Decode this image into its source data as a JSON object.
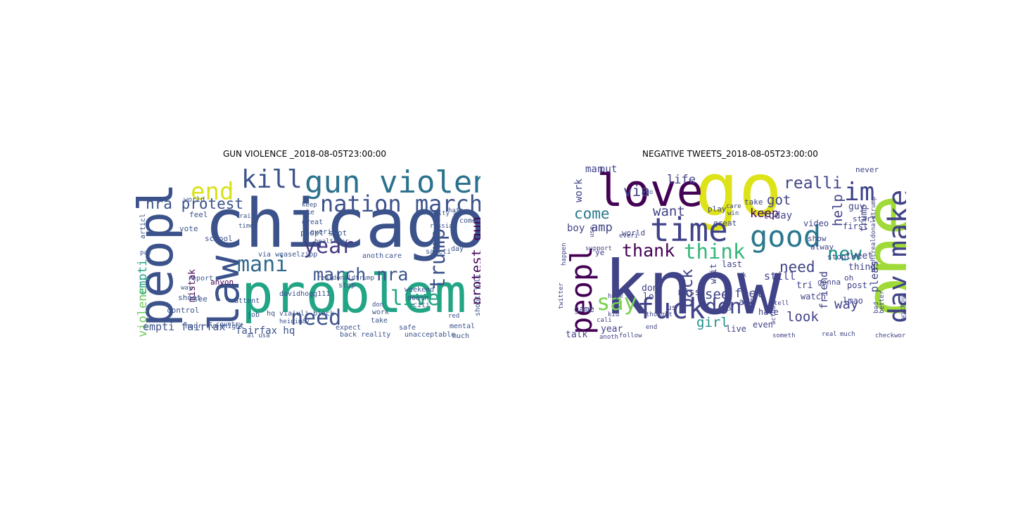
{
  "chart_data": [
    {
      "type": "wordcloud",
      "title": "GUN VIOLENCE _2018-08-05T23:00:00",
      "words": [
        {
          "text": "chicago",
          "weight": 100,
          "color": "#3b528b"
        },
        {
          "text": "problem",
          "weight": 80,
          "color": "#21a585"
        },
        {
          "text": "peopl",
          "weight": 72,
          "color": "#3b528b"
        },
        {
          "text": "law",
          "weight": 62,
          "color": "#3b528b"
        },
        {
          "text": "gun violenc",
          "weight": 46,
          "color": "#2c728e"
        },
        {
          "text": "kill",
          "weight": 38,
          "color": "#3b528b"
        },
        {
          "text": "end",
          "weight": 36,
          "color": "#d8e219"
        },
        {
          "text": "nation march",
          "weight": 34,
          "color": "#3b528b"
        },
        {
          "text": "year",
          "weight": 32,
          "color": "#443983"
        },
        {
          "text": "mani",
          "weight": 32,
          "color": "#31688e"
        },
        {
          "text": "need",
          "weight": 32,
          "color": "#3b528b"
        },
        {
          "text": "trump",
          "weight": 30,
          "color": "#3b528b"
        },
        {
          "text": "live",
          "weight": 30,
          "color": "#21a585"
        },
        {
          "text": "march nra",
          "weight": 26,
          "color": "#3b528b"
        },
        {
          "text": "nra protest",
          "weight": 22,
          "color": "#3b528b"
        },
        {
          "text": "protest gun",
          "weight": 20,
          "color": "#440154"
        },
        {
          "text": "empti",
          "weight": 18,
          "color": "#21a585"
        },
        {
          "text": "violenc",
          "weight": 18,
          "color": "#6ccd5a"
        },
        {
          "text": "empti fairfax",
          "weight": 16,
          "color": "#3b528b"
        },
        {
          "text": "fairfax hq",
          "weight": 15,
          "color": "#3b528b"
        },
        {
          "text": "mistak",
          "weight": 14,
          "color": "#440154"
        },
        {
          "text": "anyon",
          "weight": 12,
          "color": "#440154"
        },
        {
          "text": "vote",
          "weight": 12,
          "color": "#3b528b"
        },
        {
          "text": "feel",
          "weight": 12,
          "color": "#3b528b"
        },
        {
          "text": "shoot",
          "weight": 12,
          "color": "#3b528b"
        },
        {
          "text": "control",
          "weight": 12,
          "color": "#3b528b"
        },
        {
          "text": "see",
          "weight": 12,
          "color": "#3b528b"
        },
        {
          "text": "school",
          "weight": 12,
          "color": "#3b528b"
        },
        {
          "text": "peopl shot",
          "weight": 12,
          "color": "#3b528b"
        },
        {
          "text": "via weaselzipp",
          "weight": 11,
          "color": "#3b528b"
        },
        {
          "text": "davidhogg111",
          "weight": 11,
          "color": "#3b528b"
        },
        {
          "text": "hq via",
          "weight": 11,
          "color": "#3b528b"
        },
        {
          "text": "juli black",
          "weight": 11,
          "color": "#3b528b"
        },
        {
          "text": "anoth",
          "weight": 11,
          "color": "#3b528b"
        },
        {
          "text": "care",
          "weight": 11,
          "color": "#3b528b"
        },
        {
          "text": "weekend",
          "weight": 11,
          "color": "#3b528b"
        },
        {
          "text": "doesn",
          "weight": 11,
          "color": "#3b528b"
        },
        {
          "text": "citi",
          "weight": 11,
          "color": "#3b528b"
        },
        {
          "text": "work",
          "weight": 11,
          "color": "#3b528b"
        },
        {
          "text": "take",
          "weight": 11,
          "color": "#3b528b"
        },
        {
          "text": "expect",
          "weight": 11,
          "color": "#3b528b"
        },
        {
          "text": "safeti",
          "weight": 11,
          "color": "#3b528b"
        },
        {
          "text": "stop",
          "weight": 11,
          "color": "#3b528b"
        },
        {
          "text": "mental",
          "weight": 11,
          "color": "#3b528b"
        },
        {
          "text": "much",
          "weight": 10,
          "color": "#3b528b"
        },
        {
          "text": "articl",
          "weight": 10,
          "color": "#3b528b"
        },
        {
          "text": "world",
          "weight": 10,
          "color": "#3b528b"
        },
        {
          "text": "everi",
          "weight": 10,
          "color": "#3b528b"
        },
        {
          "text": "make",
          "weight": 10,
          "color": "#3b528b"
        },
        {
          "text": "great",
          "weight": 10,
          "color": "#3b528b"
        },
        {
          "text": "day",
          "weight": 10,
          "color": "#3b528b"
        },
        {
          "text": "come",
          "weight": 10,
          "color": "#3b528b"
        },
        {
          "text": "shoot juli",
          "weight": 10,
          "color": "#3b528b"
        },
        {
          "text": "attent",
          "weight": 10,
          "color": "#3b528b"
        },
        {
          "text": "report",
          "weight": 10,
          "color": "#3b528b"
        },
        {
          "text": "hour overnight",
          "weight": 10,
          "color": "#3b528b"
        },
        {
          "text": "back reality",
          "weight": 10,
          "color": "#3b528b"
        },
        {
          "text": "unacceptable",
          "weight": 10,
          "color": "#3b528b"
        },
        {
          "text": "safe",
          "weight": 10,
          "color": "#3b528b"
        },
        {
          "text": "job",
          "weight": 10,
          "color": "#3b528b"
        },
        {
          "text": "train",
          "weight": 9,
          "color": "#3b528b"
        },
        {
          "text": "keep",
          "weight": 9,
          "color": "#3b528b"
        },
        {
          "text": "realdonaldtrump",
          "weight": 9,
          "color": "#3b528b"
        },
        {
          "text": "heidim87",
          "weight": 9,
          "color": "#3b528b"
        },
        {
          "text": "country",
          "weight": 9,
          "color": "#3b528b"
        },
        {
          "text": "reality al",
          "weight": 9,
          "color": "#3b528b"
        },
        {
          "text": "don",
          "weight": 9,
          "color": "#3b528b"
        },
        {
          "text": "way",
          "weight": 9,
          "color": "#3b528b"
        },
        {
          "text": "red",
          "weight": 9,
          "color": "#3b528b"
        },
        {
          "text": "russian",
          "weight": 9,
          "color": "#3b528b"
        },
        {
          "text": "al usa",
          "weight": 9,
          "color": "#3b528b"
        },
        {
          "text": "healthcar",
          "weight": 9,
          "color": "#3b528b"
        },
        {
          "text": "pay",
          "weight": 9,
          "color": "#3b528b"
        },
        {
          "text": "time",
          "weight": 9,
          "color": "#3b528b"
        },
        {
          "text": "hate",
          "weight": 9,
          "color": "#3b528b"
        }
      ]
    },
    {
      "type": "wordcloud",
      "title": "NEGATIVE TWEETS_2018-08-05T23:00:00",
      "words": [
        {
          "text": "know",
          "weight": 100,
          "color": "#404387"
        },
        {
          "text": "go",
          "weight": 98,
          "color": "#dde318"
        },
        {
          "text": "one",
          "weight": 92,
          "color": "#a0da39"
        },
        {
          "text": "love",
          "weight": 60,
          "color": "#440154"
        },
        {
          "text": "time",
          "weight": 44,
          "color": "#404387"
        },
        {
          "text": "good",
          "weight": 40,
          "color": "#2a788e"
        },
        {
          "text": "peopl",
          "weight": 40,
          "color": "#440154"
        },
        {
          "text": "fuck",
          "weight": 38,
          "color": "#404387"
        },
        {
          "text": "make",
          "weight": 38,
          "color": "#404387"
        },
        {
          "text": "day",
          "weight": 36,
          "color": "#404387"
        },
        {
          "text": "im",
          "weight": 34,
          "color": "#404387"
        },
        {
          "text": "say",
          "weight": 30,
          "color": "#7ad151"
        },
        {
          "text": "think",
          "weight": 28,
          "color": "#35b779"
        },
        {
          "text": "dont",
          "weight": 28,
          "color": "#404387"
        },
        {
          "text": "new",
          "weight": 26,
          "color": "#21918c"
        },
        {
          "text": "thank",
          "weight": 24,
          "color": "#440154"
        },
        {
          "text": "back",
          "weight": 22,
          "color": "#404387"
        },
        {
          "text": "realli",
          "weight": 22,
          "color": "#404387"
        },
        {
          "text": "need",
          "weight": 20,
          "color": "#404387"
        },
        {
          "text": "come",
          "weight": 20,
          "color": "#2a788e"
        },
        {
          "text": "via",
          "weight": 20,
          "color": "#404387"
        },
        {
          "text": "want",
          "weight": 18,
          "color": "#404387"
        },
        {
          "text": "help",
          "weight": 18,
          "color": "#404387"
        },
        {
          "text": "see",
          "weight": 18,
          "color": "#404387"
        },
        {
          "text": "way",
          "weight": 18,
          "color": "#404387"
        },
        {
          "text": "look",
          "weight": 18,
          "color": "#404387"
        },
        {
          "text": "got",
          "weight": 18,
          "color": "#404387"
        },
        {
          "text": "girl",
          "weight": 18,
          "color": "#21918c"
        },
        {
          "text": "amp",
          "weight": 16,
          "color": "#404387"
        },
        {
          "text": "life",
          "weight": 16,
          "color": "#404387"
        },
        {
          "text": "keep",
          "weight": 16,
          "color": "#440154"
        },
        {
          "text": "feel",
          "weight": 16,
          "color": "#404387"
        },
        {
          "text": "still",
          "weight": 14,
          "color": "#404387"
        },
        {
          "text": "pleas",
          "weight": 14,
          "color": "#404387"
        },
        {
          "text": "friend",
          "weight": 14,
          "color": "#404387"
        },
        {
          "text": "man",
          "weight": 13,
          "color": "#404387"
        },
        {
          "text": "put",
          "weight": 13,
          "color": "#404387"
        },
        {
          "text": "work",
          "weight": 13,
          "color": "#404387"
        },
        {
          "text": "boy",
          "weight": 13,
          "color": "#404387"
        },
        {
          "text": "today",
          "weight": 13,
          "color": "#404387"
        },
        {
          "text": "guy",
          "weight": 12,
          "color": "#404387"
        },
        {
          "text": "trump",
          "weight": 12,
          "color": "#404387"
        },
        {
          "text": "tweet",
          "weight": 12,
          "color": "#404387"
        },
        {
          "text": "thing",
          "weight": 12,
          "color": "#404387"
        },
        {
          "text": "don",
          "weight": 12,
          "color": "#404387"
        },
        {
          "text": "lol",
          "weight": 12,
          "color": "#404387"
        },
        {
          "text": "tri",
          "weight": 12,
          "color": "#404387"
        },
        {
          "text": "ask",
          "weight": 12,
          "color": "#404387"
        },
        {
          "text": "miss",
          "weight": 12,
          "color": "#404387"
        },
        {
          "text": "year",
          "weight": 12,
          "color": "#404387"
        },
        {
          "text": "talk",
          "weight": 12,
          "color": "#404387"
        },
        {
          "text": "game",
          "weight": 11,
          "color": "#404387"
        },
        {
          "text": "wait",
          "weight": 11,
          "color": "#404387"
        },
        {
          "text": "last",
          "weight": 11,
          "color": "#404387"
        },
        {
          "text": "hate",
          "weight": 11,
          "color": "#404387"
        },
        {
          "text": "lmao",
          "weight": 11,
          "color": "#404387"
        },
        {
          "text": "even",
          "weight": 11,
          "color": "#404387"
        },
        {
          "text": "live",
          "weight": 11,
          "color": "#404387"
        },
        {
          "text": "post",
          "weight": 11,
          "color": "#404387"
        },
        {
          "text": "first",
          "weight": 11,
          "color": "#404387"
        },
        {
          "text": "watch",
          "weight": 11,
          "color": "#404387"
        },
        {
          "text": "video",
          "weight": 11,
          "color": "#404387"
        },
        {
          "text": "show",
          "weight": 10,
          "color": "#404387"
        },
        {
          "text": "start",
          "weight": 10,
          "color": "#404387"
        },
        {
          "text": "never",
          "weight": 10,
          "color": "#404387"
        },
        {
          "text": "world",
          "weight": 10,
          "color": "#404387"
        },
        {
          "text": "great",
          "weight": 10,
          "color": "#404387"
        },
        {
          "text": "take",
          "weight": 10,
          "color": "#404387"
        },
        {
          "text": "play",
          "weight": 10,
          "color": "#404387"
        },
        {
          "text": "gonna",
          "weight": 10,
          "color": "#404387"
        },
        {
          "text": "alway",
          "weight": 10,
          "color": "#404387"
        },
        {
          "text": "stop",
          "weight": 10,
          "color": "#404387"
        },
        {
          "text": "oh",
          "weight": 10,
          "color": "#404387"
        },
        {
          "text": "us",
          "weight": 10,
          "color": "#404387"
        },
        {
          "text": "ye",
          "weight": 10,
          "color": "#404387"
        },
        {
          "text": "nightrealdonaldtrump",
          "weight": 9,
          "color": "#404387"
        },
        {
          "text": "actual",
          "weight": 9,
          "color": "#404387"
        },
        {
          "text": "real",
          "weight": 9,
          "color": "#404387"
        },
        {
          "text": "much",
          "weight": 9,
          "color": "#404387"
        },
        {
          "text": "checkword",
          "weight": 9,
          "color": "#404387"
        },
        {
          "text": "follow",
          "weight": 9,
          "color": "#404387"
        },
        {
          "text": "anoth",
          "weight": 9,
          "color": "#404387"
        },
        {
          "text": "twitter",
          "weight": 9,
          "color": "#404387"
        },
        {
          "text": "happen",
          "weight": 9,
          "color": "#404387"
        },
        {
          "text": "hope",
          "weight": 9,
          "color": "#404387"
        },
        {
          "text": "kid",
          "weight": 9,
          "color": "#404387"
        },
        {
          "text": "tell",
          "weight": 9,
          "color": "#404387"
        },
        {
          "text": "someth",
          "weight": 9,
          "color": "#404387"
        },
        {
          "text": "wanna",
          "weight": 9,
          "color": "#404387"
        },
        {
          "text": "bad",
          "weight": 9,
          "color": "#404387"
        },
        {
          "text": "better",
          "weight": 9,
          "color": "#404387"
        },
        {
          "text": "without",
          "weight": 9,
          "color": "#404387"
        },
        {
          "text": "end",
          "weight": 9,
          "color": "#404387"
        },
        {
          "text": "ok",
          "weight": 9,
          "color": "#404387"
        },
        {
          "text": "care",
          "weight": 9,
          "color": "#404387"
        },
        {
          "text": "win",
          "weight": 9,
          "color": "#404387"
        },
        {
          "text": "bro",
          "weight": 9,
          "color": "#404387"
        },
        {
          "text": "use",
          "weight": 9,
          "color": "#404387"
        },
        {
          "text": "support",
          "weight": 9,
          "color": "#404387"
        },
        {
          "text": "everi",
          "weight": 9,
          "color": "#404387"
        },
        {
          "text": "thought",
          "weight": 9,
          "color": "#404387"
        },
        {
          "text": "cali",
          "weight": 9,
          "color": "#404387"
        }
      ]
    }
  ]
}
